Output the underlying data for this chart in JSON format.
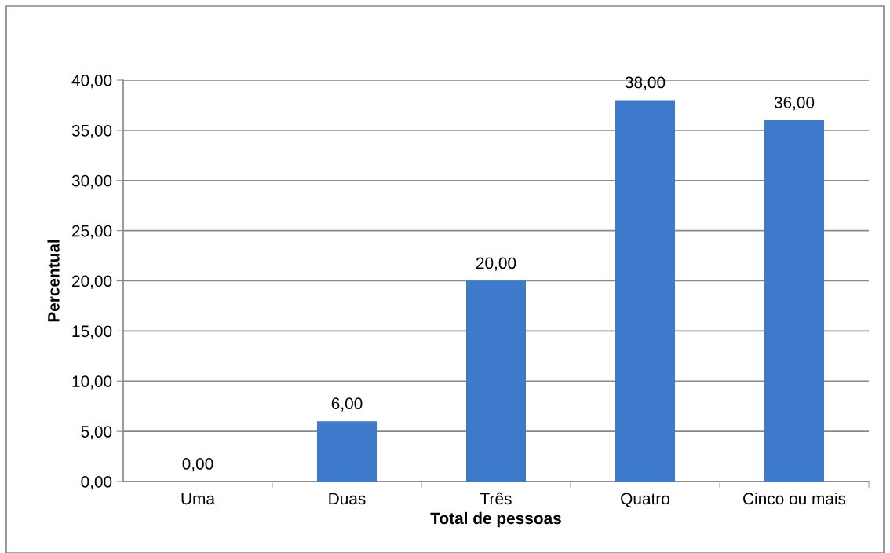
{
  "chart_data": {
    "type": "bar",
    "xlabel": "Total de pessoas",
    "ylabel": "Percentual",
    "categories": [
      "Uma",
      "Duas",
      "Três",
      "Quatro",
      "Cinco ou mais"
    ],
    "values": [
      0,
      6,
      20,
      38,
      36
    ],
    "color": "#3d7acb",
    "value_labels": [
      "0,00",
      "6,00",
      "20,00",
      "38,00",
      "36,00"
    ],
    "ylim": [
      0,
      40
    ],
    "yticks": [
      {
        "value": 0,
        "label": "0,00"
      },
      {
        "value": 5,
        "label": "5,00"
      },
      {
        "value": 10,
        "label": "10,00"
      },
      {
        "value": 15,
        "label": "15,00"
      },
      {
        "value": 20,
        "label": "20,00"
      },
      {
        "value": 25,
        "label": "25,00"
      },
      {
        "value": 30,
        "label": "30,00"
      },
      {
        "value": 35,
        "label": "35,00"
      },
      {
        "value": 40,
        "label": "40,00"
      }
    ],
    "grid": "y"
  }
}
